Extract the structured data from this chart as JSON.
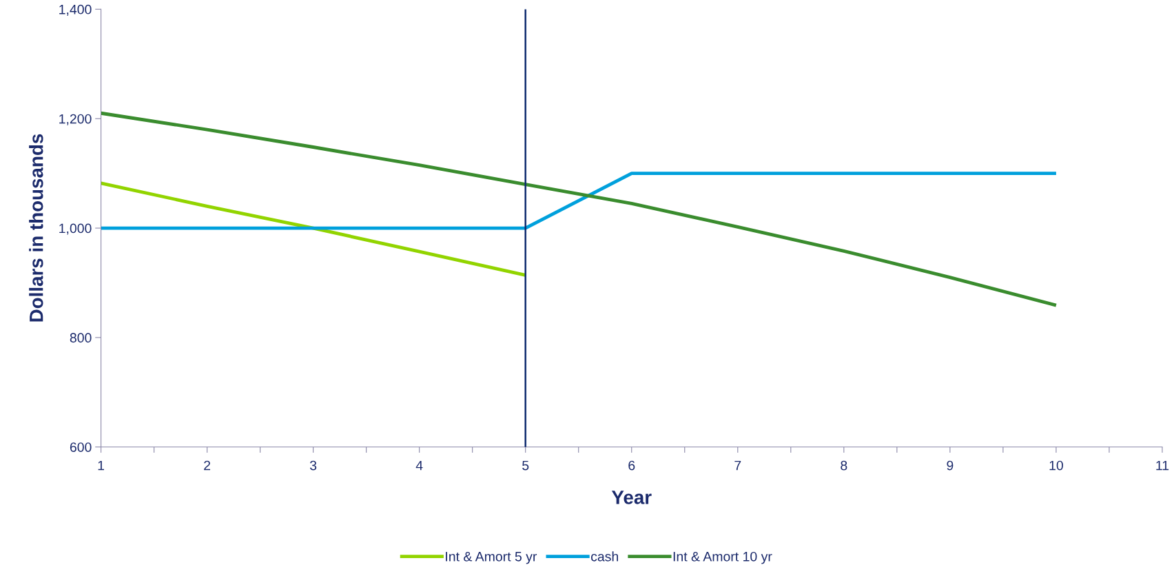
{
  "chart_data": {
    "type": "line",
    "xlabel": "Year",
    "ylabel": "Dollars in thousands",
    "x": [
      1,
      2,
      3,
      4,
      5,
      6,
      7,
      8,
      9,
      10
    ],
    "series": [
      {
        "name": "Int & Amort 5 yr",
        "color": "#92d400",
        "values": [
          1082,
          1040,
          1000,
          957,
          914,
          null,
          null,
          null,
          null,
          null
        ]
      },
      {
        "name": "cash",
        "color": "#00a0dc",
        "values": [
          1000,
          1000,
          1000,
          1000,
          1000,
          1100,
          1100,
          1100,
          1100,
          1100
        ]
      },
      {
        "name": "Int & Amort 10 yr",
        "color": "#3a8c2e",
        "values": [
          1210,
          1180,
          1148,
          1115,
          1080,
          1045,
          1002,
          958,
          910,
          859
        ]
      }
    ],
    "xlim": [
      1,
      11
    ],
    "xticks": [
      1,
      {
        "value": 1.5,
        "label": null
      },
      2,
      {
        "value": 2.5,
        "label": null
      },
      3,
      {
        "value": 3.5,
        "label": null
      },
      4,
      {
        "value": 4.5,
        "label": null
      },
      5,
      {
        "value": 5.5,
        "label": null
      },
      6,
      {
        "value": 6.5,
        "label": null
      },
      7,
      {
        "value": 7.5,
        "label": null
      },
      8,
      {
        "value": 8.5,
        "label": null
      },
      9,
      {
        "value": 9.5,
        "label": null
      },
      10,
      {
        "value": 10.5,
        "label": null
      },
      11
    ],
    "ylim": [
      600,
      1400
    ],
    "yticks": [
      {
        "value": 600,
        "label": "600"
      },
      {
        "value": 800,
        "label": "800"
      },
      {
        "value": 1000,
        "label": "1,000"
      },
      {
        "value": 1200,
        "label": "1,200"
      },
      {
        "value": 1400,
        "label": "1,400"
      }
    ],
    "ref_lines": [
      {
        "axis": "x",
        "value": 5,
        "color": "#0d2a6e"
      }
    ],
    "grid": false,
    "legend": "bottom",
    "marker": "none",
    "line_style": "solid"
  }
}
